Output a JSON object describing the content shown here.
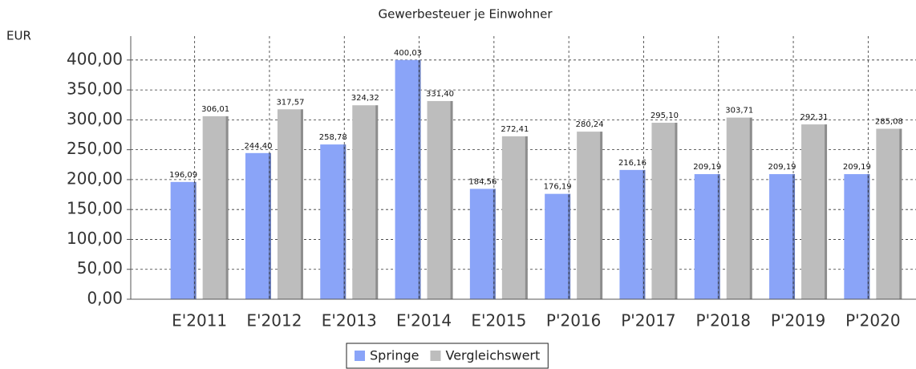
{
  "chart_data": {
    "type": "bar",
    "title": "Gewerbesteuer je Einwohner",
    "y_label": "EUR",
    "categories": [
      "E'2011",
      "E'2012",
      "E'2013",
      "E'2014",
      "E'2015",
      "P'2016",
      "P'2017",
      "P'2018",
      "P'2019",
      "P'2020"
    ],
    "series": [
      {
        "name": "Springe",
        "color": "#8aa4f8",
        "values": [
          196.09,
          244.4,
          258.78,
          400.03,
          184.56,
          176.19,
          216.16,
          209.19,
          209.19,
          209.19
        ],
        "value_labels": [
          "196,09",
          "244,40",
          "258,78",
          "400,03",
          "184,56",
          "176,19",
          "216,16",
          "209,19",
          "209,19",
          "209,19"
        ]
      },
      {
        "name": "Vergleichswert",
        "color": "#bdbdbd",
        "values": [
          306.01,
          317.57,
          324.32,
          331.4,
          272.41,
          280.24,
          295.1,
          303.71,
          292.31,
          285.08
        ],
        "value_labels": [
          "306,01",
          "317,57",
          "324,32",
          "331,40",
          "272,41",
          "280,24",
          "295,10",
          "303,71",
          "292,31",
          "285,08"
        ]
      }
    ],
    "ylim": [
      0,
      440
    ],
    "yticks": [
      {
        "value": 0,
        "label": "0,00"
      },
      {
        "value": 50,
        "label": "50,00"
      },
      {
        "value": 100,
        "label": "100,00"
      },
      {
        "value": 150,
        "label": "150,00"
      },
      {
        "value": 200,
        "label": "200,00"
      },
      {
        "value": 250,
        "label": "250,00"
      },
      {
        "value": 300,
        "label": "300,00"
      },
      {
        "value": 350,
        "label": "350,00"
      },
      {
        "value": 400,
        "label": "400,00"
      }
    ],
    "grid": true,
    "legend": "bottom"
  }
}
